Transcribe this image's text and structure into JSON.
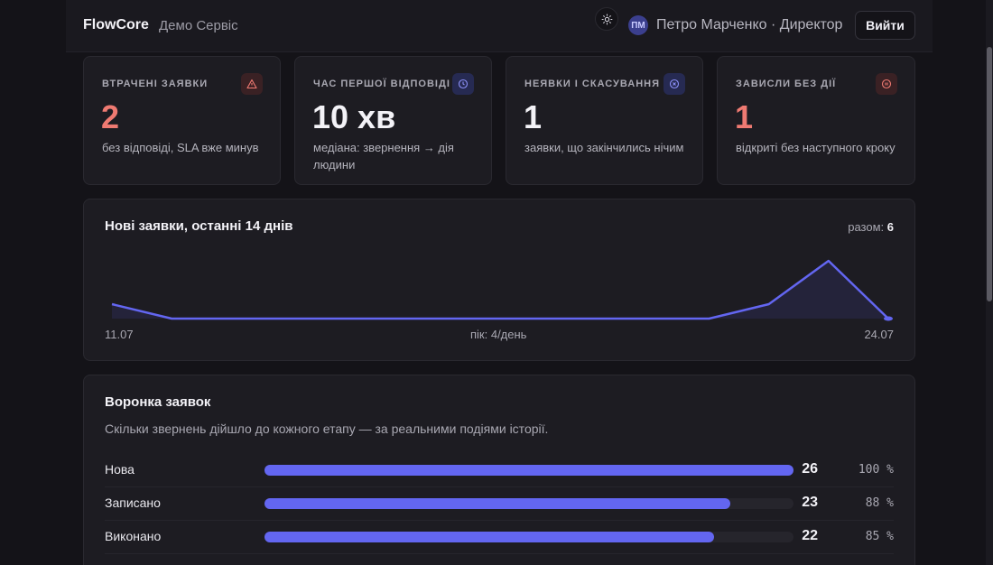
{
  "header": {
    "brand": "FlowCore",
    "service": "Демо Сервіс",
    "avatar_initials": "ПМ",
    "user": "Петро Марченко · Директор",
    "logout_label": "Вийти",
    "theme_icon": "sun-icon"
  },
  "stats": [
    {
      "label": "ВТРАЧЕНІ ЗАЯВКИ",
      "value": "2",
      "desc": "без відповіді, SLA вже минув",
      "icon": "warning-icon",
      "accent": "#ef7a72"
    },
    {
      "label": "ЧАС ПЕРШОЇ ВІДПОВІДІ",
      "value": "10 хв",
      "desc": "медіана: звернення → дія людини",
      "icon": "clock-icon",
      "accent": "#8b8ff5"
    },
    {
      "label": "НЕЯВКИ І СКАСУВАННЯ",
      "value": "1",
      "desc": "заявки, що закінчились нічим",
      "icon": "x-circle-icon",
      "accent": "#8b8ff5"
    },
    {
      "label": "ЗАВИСЛИ БЕЗ ДІЇ",
      "value": "1",
      "desc": "відкриті без наступного кроку",
      "icon": "pause-circle-icon",
      "accent": "#ef7a72"
    }
  ],
  "new_requests": {
    "title": "Нові заявки, останні 14 днів",
    "total_label": "разом:",
    "total_value": "6",
    "start_label": "11.07",
    "peak_label": "пік: 4/день",
    "end_label": "24.07"
  },
  "chart_data": {
    "type": "area",
    "x": [
      "11.07",
      "12.07",
      "13.07",
      "14.07",
      "15.07",
      "16.07",
      "17.07",
      "18.07",
      "19.07",
      "20.07",
      "21.07",
      "22.07",
      "23.07",
      "24.07"
    ],
    "values": [
      1,
      0,
      0,
      0,
      0,
      0,
      0,
      0,
      0,
      0,
      0,
      1,
      4,
      0
    ],
    "ylim": [
      0,
      4
    ],
    "color": "#6366f1"
  },
  "funnel": {
    "title": "Воронка заявок",
    "subtitle": "Скільки звернень дійшло до кожного етапу — за реальними подіями історії.",
    "rows": [
      {
        "label": "Нова",
        "count": "26",
        "pct": "100 %",
        "fraction": 1.0
      },
      {
        "label": "Записано",
        "count": "23",
        "pct": "88 %",
        "fraction": 0.88
      },
      {
        "label": "Виконано",
        "count": "22",
        "pct": "85 %",
        "fraction": 0.85
      }
    ]
  }
}
